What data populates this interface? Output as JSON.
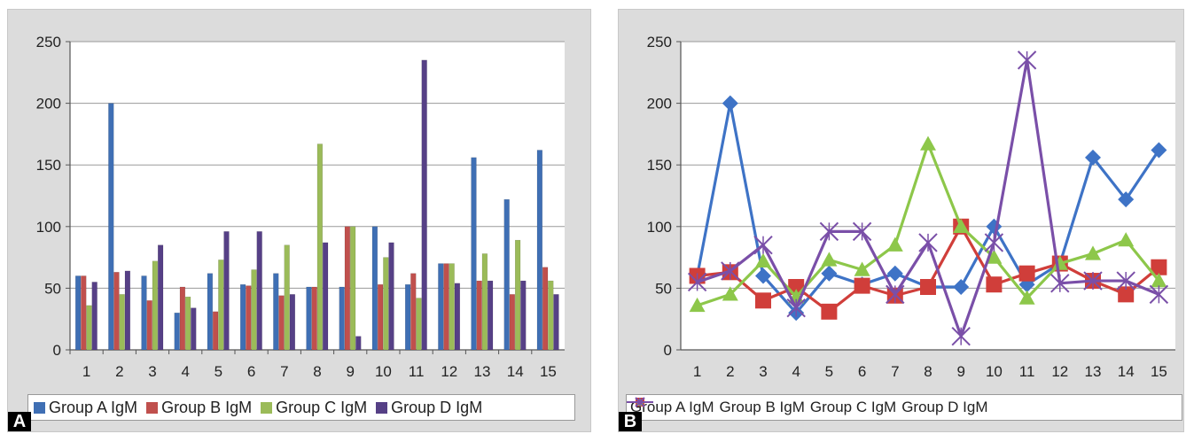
{
  "chart_data": [
    {
      "type": "bar",
      "panel_label": "A",
      "categories": [
        "1",
        "2",
        "3",
        "4",
        "5",
        "6",
        "7",
        "8",
        "9",
        "10",
        "11",
        "12",
        "13",
        "14",
        "15"
      ],
      "series": [
        {
          "name": "Group A IgM",
          "color": "#3f6fb4",
          "values": [
            60,
            200,
            60,
            30,
            62,
            53,
            62,
            51,
            51,
            100,
            53,
            70,
            156,
            122,
            162
          ]
        },
        {
          "name": "Group B IgM",
          "color": "#c0504d",
          "values": [
            60,
            63,
            40,
            51,
            31,
            52,
            44,
            51,
            100,
            53,
            62,
            70,
            56,
            45,
            67
          ]
        },
        {
          "name": "Group C IgM",
          "color": "#9bbb59",
          "values": [
            36,
            45,
            72,
            43,
            73,
            65,
            85,
            167,
            100,
            75,
            42,
            70,
            78,
            89,
            56
          ]
        },
        {
          "name": "Group D IgM",
          "color": "#564086",
          "values": [
            55,
            64,
            85,
            34,
            96,
            96,
            45,
            87,
            11,
            87,
            235,
            54,
            56,
            56,
            45
          ]
        }
      ],
      "ylim": [
        0,
        250
      ],
      "yticks": [
        0,
        50,
        100,
        150,
        200,
        250
      ],
      "grid": true,
      "legend": "bottom"
    },
    {
      "type": "line",
      "panel_label": "B",
      "categories": [
        "1",
        "2",
        "3",
        "4",
        "5",
        "6",
        "7",
        "8",
        "9",
        "10",
        "11",
        "12",
        "13",
        "14",
        "15"
      ],
      "series": [
        {
          "name": "Group A IgM",
          "color": "#3e73c6",
          "marker": "diamond",
          "values": [
            60,
            200,
            60,
            30,
            62,
            53,
            62,
            51,
            51,
            100,
            53,
            70,
            156,
            122,
            162
          ]
        },
        {
          "name": "Group B IgM",
          "color": "#d03e3a",
          "marker": "square",
          "values": [
            60,
            63,
            40,
            51,
            31,
            52,
            44,
            51,
            100,
            53,
            62,
            70,
            56,
            45,
            67
          ]
        },
        {
          "name": "Group C IgM",
          "color": "#8dc74a",
          "marker": "triangle",
          "values": [
            36,
            45,
            72,
            43,
            73,
            65,
            85,
            167,
            100,
            75,
            42,
            70,
            78,
            89,
            56
          ]
        },
        {
          "name": "Group D IgM",
          "color": "#7a4fa8",
          "marker": "x",
          "values": [
            55,
            64,
            85,
            34,
            96,
            96,
            45,
            87,
            11,
            87,
            235,
            54,
            56,
            56,
            45
          ]
        }
      ],
      "ylim": [
        0,
        250
      ],
      "yticks": [
        0,
        50,
        100,
        150,
        200,
        250
      ],
      "grid": true,
      "legend": "bottom"
    }
  ]
}
